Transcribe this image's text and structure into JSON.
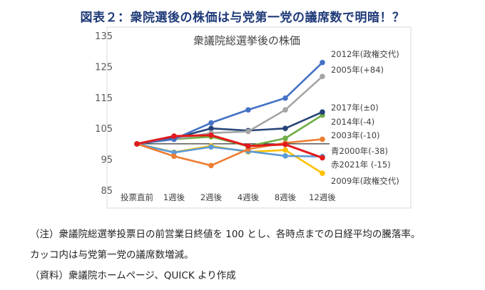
{
  "figure_title": "図表２：衆院選後の株価は与党第一党の議席数で明暗！？",
  "chart_data": {
    "type": "line",
    "title": "衆議院総選挙後の株価",
    "categories": [
      "投票直前",
      "1週後",
      "2週後",
      "4週後",
      "8週後",
      "12週後"
    ],
    "ylim": [
      85,
      135
    ],
    "yticks": [
      85,
      95,
      105,
      115,
      125,
      135
    ],
    "reference_line": 100,
    "grid": false,
    "legend_placement": "right, labels at line ends",
    "series": [
      {
        "name": "2012年(政権交代)",
        "color": "#4472c4",
        "values": [
          100,
          101.5,
          106.8,
          111,
          114.8,
          126.3
        ]
      },
      {
        "name": "2005年(+84)",
        "color": "#a5a5a5",
        "values": [
          100,
          101.5,
          103.5,
          104,
          111,
          121.8
        ]
      },
      {
        "name": "2017年(±0)",
        "color": "#264478",
        "values": [
          100,
          101.8,
          105,
          104.3,
          105,
          110.3
        ]
      },
      {
        "name": "2014年(-4)",
        "color": "#70ad47",
        "values": [
          100,
          101.5,
          102.3,
          99.2,
          101.8,
          109.3
        ]
      },
      {
        "name": "2003年(-10)",
        "color": "#ed7d31",
        "values": [
          100,
          96,
          93,
          98.3,
          100.3,
          101.5
        ]
      },
      {
        "name": "青2000年(-38)",
        "color": "#5b9bd5",
        "values": [
          100,
          97.2,
          99,
          97.6,
          96.1,
          95.9
        ]
      },
      {
        "name": "赤2021年 (-15)",
        "color": "#e31a1c",
        "values": [
          100,
          102.5,
          102.8,
          99.3,
          99.8,
          95.5
        ]
      },
      {
        "name": "2009年(政権交代)",
        "color": "#ffc000",
        "values": [
          100,
          97.3,
          99.3,
          97.4,
          98,
          90.5
        ]
      }
    ]
  },
  "notes": [
    "（注）衆議院総選挙投票日の前営業日終値を 100 とし、各時点までの日経平均の騰落率。",
    "カッコ内は与党第一党の議席数増減。",
    "（資料）衆議院ホームページ、QUICK より作成"
  ]
}
